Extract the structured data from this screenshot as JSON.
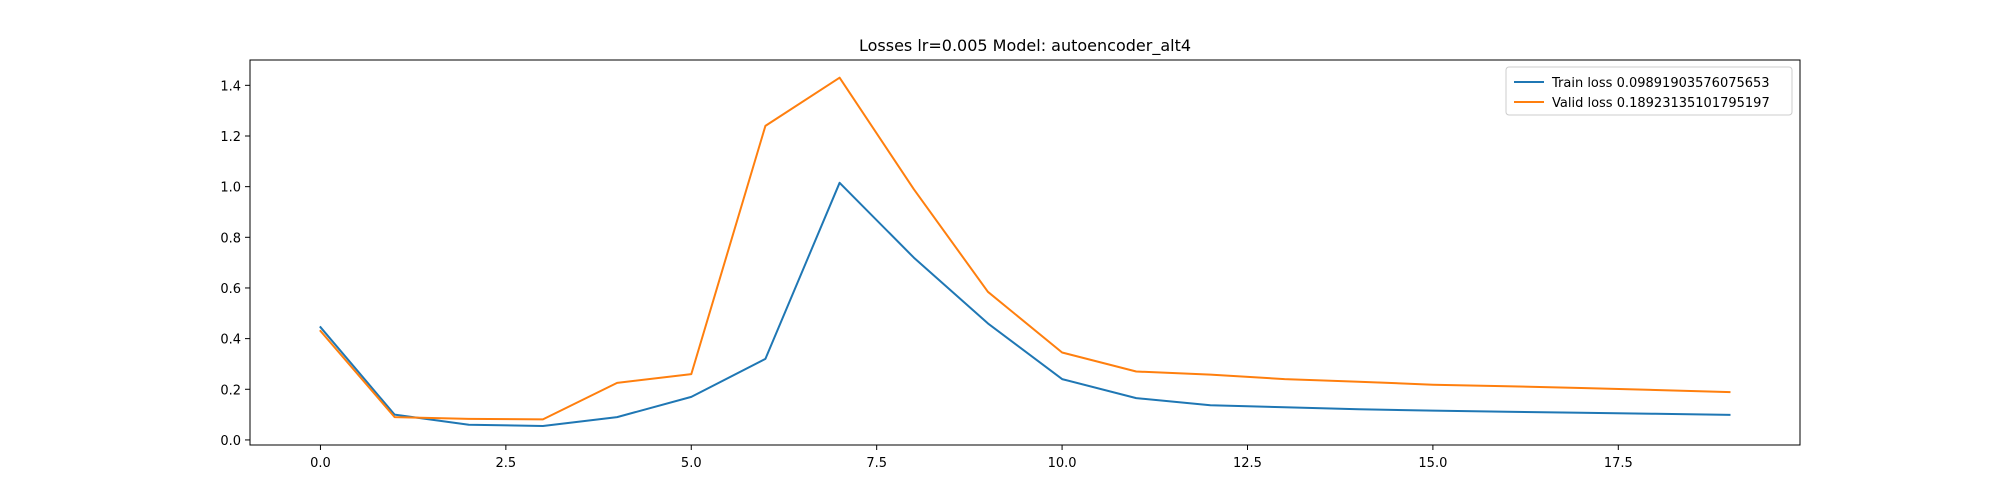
{
  "chart_data": {
    "type": "line",
    "title": "Losses lr=0.005 Model: autoencoder_alt4",
    "xlabel": "",
    "ylabel": "",
    "xlim": [
      -0.95,
      19.95
    ],
    "ylim": [
      -0.02,
      1.5
    ],
    "xticks": [
      0.0,
      2.5,
      5.0,
      7.5,
      10.0,
      12.5,
      15.0,
      17.5
    ],
    "xtick_labels": [
      "0.0",
      "2.5",
      "5.0",
      "7.5",
      "10.0",
      "12.5",
      "15.0",
      "17.5"
    ],
    "yticks": [
      0.0,
      0.2,
      0.4,
      0.6,
      0.8,
      1.0,
      1.2,
      1.4
    ],
    "ytick_labels": [
      "0.0",
      "0.2",
      "0.4",
      "0.6",
      "0.8",
      "1.0",
      "1.2",
      "1.4"
    ],
    "grid": false,
    "legend_position": "top-right",
    "x": [
      0,
      1,
      2,
      3,
      4,
      5,
      6,
      7,
      8,
      9,
      10,
      11,
      12,
      13,
      14,
      15,
      16,
      17,
      18,
      19
    ],
    "series": [
      {
        "name": "Train loss 0.09891903576075653",
        "color": "#1f77b4",
        "values": [
          0.445,
          0.1,
          0.06,
          0.055,
          0.09,
          0.17,
          0.32,
          1.015,
          0.72,
          0.46,
          0.24,
          0.165,
          0.137,
          0.129,
          0.121,
          0.116,
          0.111,
          0.107,
          0.103,
          0.0989
        ]
      },
      {
        "name": "Valid loss 0.18923135101795197",
        "color": "#ff7f0e",
        "values": [
          0.43,
          0.09,
          0.083,
          0.081,
          0.225,
          0.26,
          1.24,
          1.43,
          0.99,
          0.585,
          0.345,
          0.27,
          0.258,
          0.24,
          0.23,
          0.218,
          0.212,
          0.205,
          0.197,
          0.189
        ]
      }
    ]
  }
}
